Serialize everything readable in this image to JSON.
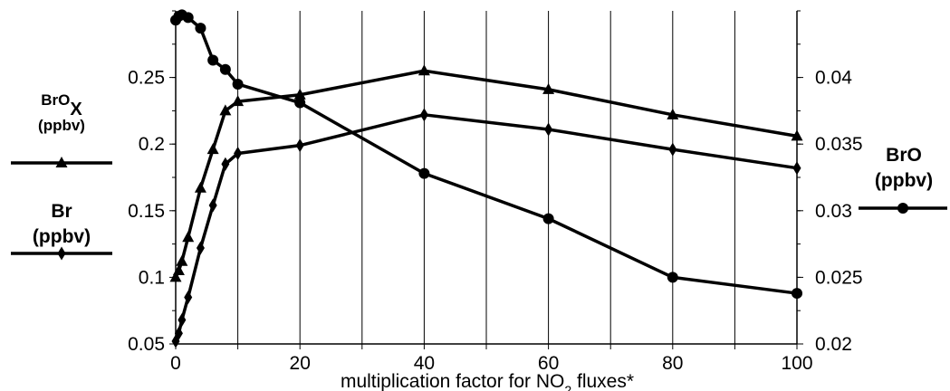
{
  "chart_data": {
    "type": "line",
    "xlabel": "multiplication factor for  NO",
    "xlabel_sub": "2",
    "xlabel_suffix": " fluxes*",
    "x_axis": {
      "min": 0,
      "max": 100,
      "ticks": [
        0,
        20,
        40,
        60,
        80,
        100
      ],
      "grid": [
        0,
        10,
        20,
        30,
        40,
        50,
        60,
        70,
        80,
        90,
        100
      ]
    },
    "y_left": {
      "min": 0.05,
      "max": 0.3,
      "ticks": [
        "0.05",
        "0.1",
        "0.15",
        "0.2",
        "0.25"
      ]
    },
    "y_right": {
      "min": 0.02,
      "max": 0.045,
      "ticks": [
        "0.02",
        "0.025",
        "0.03",
        "0.035",
        "0.04"
      ]
    },
    "grid": "vertical",
    "series": [
      {
        "label_main": "BrO",
        "label_sub": "X",
        "unit": "(ppbv)",
        "axis": "left",
        "marker": "triangle",
        "x": [
          0,
          0.5,
          1,
          2,
          4,
          6,
          8,
          10,
          20,
          40,
          60,
          80,
          100
        ],
        "y": [
          0.1,
          0.105,
          0.112,
          0.13,
          0.167,
          0.196,
          0.225,
          0.232,
          0.237,
          0.255,
          0.241,
          0.222,
          0.206
        ]
      },
      {
        "label_main": "Br",
        "label_sub": "",
        "unit": "(ppbv)",
        "axis": "left",
        "marker": "diamond",
        "x": [
          0,
          0.5,
          1,
          2,
          4,
          6,
          8,
          10,
          20,
          40,
          60,
          80,
          100
        ],
        "y": [
          0.052,
          0.058,
          0.068,
          0.085,
          0.122,
          0.154,
          0.185,
          0.193,
          0.199,
          0.222,
          0.211,
          0.196,
          0.182
        ]
      },
      {
        "label_main": "BrO",
        "label_sub": "",
        "unit": "(ppbv)",
        "axis": "right",
        "marker": "circle",
        "x": [
          0,
          0.5,
          1,
          2,
          4,
          6,
          8,
          10,
          20,
          40,
          60,
          80,
          100
        ],
        "y": [
          0.0443,
          0.0446,
          0.0447,
          0.0445,
          0.0437,
          0.0413,
          0.0406,
          0.0395,
          0.0381,
          0.0328,
          0.0294,
          0.025,
          0.0238
        ]
      }
    ]
  }
}
